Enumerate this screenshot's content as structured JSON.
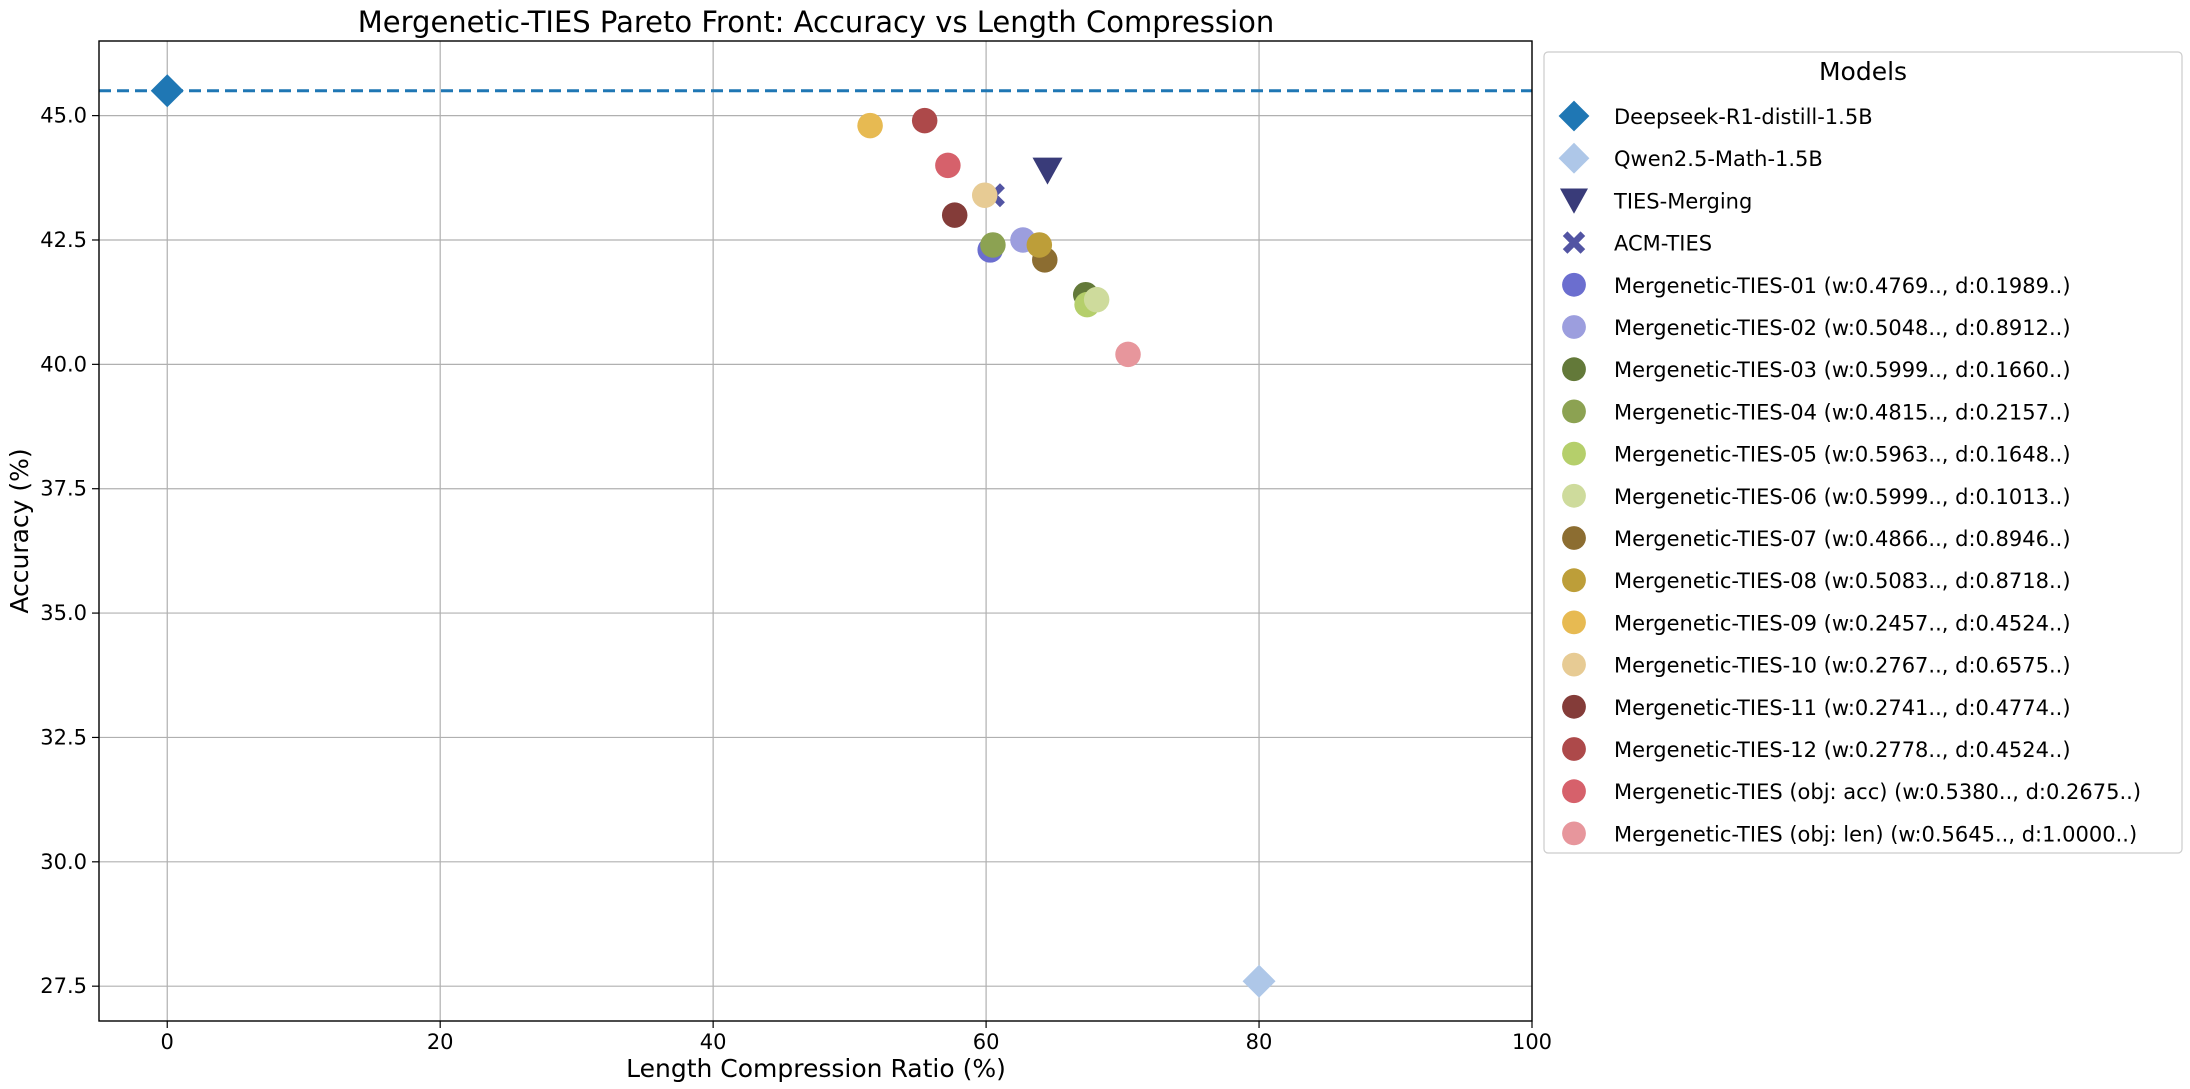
{
  "chart_data": {
    "type": "scatter",
    "title": "Mergenetic-TIES Pareto Front: Accuracy vs Length Compression",
    "xlabel": "Length Compression Ratio (%)",
    "ylabel": "Accuracy (%)",
    "xlim": [
      -5,
      100
    ],
    "ylim": [
      26.8,
      46.5
    ],
    "xticks": [
      0,
      20,
      40,
      60,
      80,
      100
    ],
    "xtick_labels": [
      "0",
      "20",
      "40",
      "60",
      "80",
      "100"
    ],
    "yticks": [
      27.5,
      30.0,
      32.5,
      35.0,
      37.5,
      40.0,
      42.5,
      45.0
    ],
    "ytick_labels": [
      "27.5",
      "30.0",
      "32.5",
      "35.0",
      "37.5",
      "40.0",
      "42.5",
      "45.0"
    ],
    "grid": true,
    "reference_line": {
      "orientation": "horizontal",
      "y": 45.5,
      "style": "dashed",
      "color": "#1f77b4"
    },
    "legend": {
      "title": "Models",
      "placement": "outside-right"
    },
    "series": [
      {
        "name": "Deepseek-R1-distill-1.5B",
        "marker": "diamond",
        "color": "#1f77b4",
        "points": [
          [
            0,
            45.5
          ]
        ]
      },
      {
        "name": "Qwen2.5-Math-1.5B",
        "marker": "diamond",
        "color": "#aec7e8",
        "points": [
          [
            80,
            27.6
          ]
        ]
      },
      {
        "name": "TIES-Merging",
        "marker": "triangle-down",
        "color": "#393b79",
        "points": [
          [
            64.5,
            43.9
          ]
        ]
      },
      {
        "name": "ACM-TIES",
        "marker": "x",
        "color": "#5254a3",
        "points": [
          [
            60.5,
            43.4
          ]
        ]
      },
      {
        "name": "Mergenetic-TIES-01 (w:0.4769.., d:0.1989..)",
        "marker": "circle",
        "color": "#6b6ecf",
        "points": [
          [
            60.3,
            42.3
          ]
        ]
      },
      {
        "name": "Mergenetic-TIES-02 (w:0.5048.., d:0.8912..)",
        "marker": "circle",
        "color": "#9c9ede",
        "points": [
          [
            62.7,
            42.5
          ]
        ]
      },
      {
        "name": "Mergenetic-TIES-03 (w:0.5999.., d:0.1660..)",
        "marker": "circle",
        "color": "#637939",
        "points": [
          [
            67.3,
            41.4
          ]
        ]
      },
      {
        "name": "Mergenetic-TIES-04 (w:0.4815.., d:0.2157..)",
        "marker": "circle",
        "color": "#8ca252",
        "points": [
          [
            60.5,
            42.4
          ]
        ]
      },
      {
        "name": "Mergenetic-TIES-05 (w:0.5963.., d:0.1648..)",
        "marker": "circle",
        "color": "#b5cf6b",
        "points": [
          [
            67.4,
            41.2
          ]
        ]
      },
      {
        "name": "Mergenetic-TIES-06 (w:0.5999.., d:0.1013..)",
        "marker": "circle",
        "color": "#cedb9c",
        "points": [
          [
            68.1,
            41.3
          ]
        ]
      },
      {
        "name": "Mergenetic-TIES-07 (w:0.4866.., d:0.8946..)",
        "marker": "circle",
        "color": "#8c6d31",
        "points": [
          [
            64.3,
            42.1
          ]
        ]
      },
      {
        "name": "Mergenetic-TIES-08 (w:0.5083.., d:0.8718..)",
        "marker": "circle",
        "color": "#bd9e39",
        "points": [
          [
            63.9,
            42.4
          ]
        ]
      },
      {
        "name": "Mergenetic-TIES-09 (w:0.2457.., d:0.4524..)",
        "marker": "circle",
        "color": "#e7ba52",
        "points": [
          [
            51.5,
            44.8
          ]
        ]
      },
      {
        "name": "Mergenetic-TIES-10 (w:0.2767.., d:0.6575..)",
        "marker": "circle",
        "color": "#e7cb94",
        "points": [
          [
            59.9,
            43.4
          ]
        ]
      },
      {
        "name": "Mergenetic-TIES-11 (w:0.2741.., d:0.4774..)",
        "marker": "circle",
        "color": "#843c39",
        "points": [
          [
            57.7,
            43.0
          ]
        ]
      },
      {
        "name": "Mergenetic-TIES-12 (w:0.2778.., d:0.4524..)",
        "marker": "circle",
        "color": "#ad494a",
        "points": [
          [
            55.5,
            44.9
          ]
        ]
      },
      {
        "name": "Mergenetic-TIES (obj: acc) (w:0.5380.., d:0.2675..)",
        "marker": "circle",
        "color": "#d6616b",
        "points": [
          [
            57.2,
            44.0
          ]
        ]
      },
      {
        "name": "Mergenetic-TIES (obj: len) (w:0.5645.., d:1.0000..)",
        "marker": "circle",
        "color": "#e7969c",
        "points": [
          [
            70.4,
            40.2
          ]
        ]
      }
    ]
  }
}
